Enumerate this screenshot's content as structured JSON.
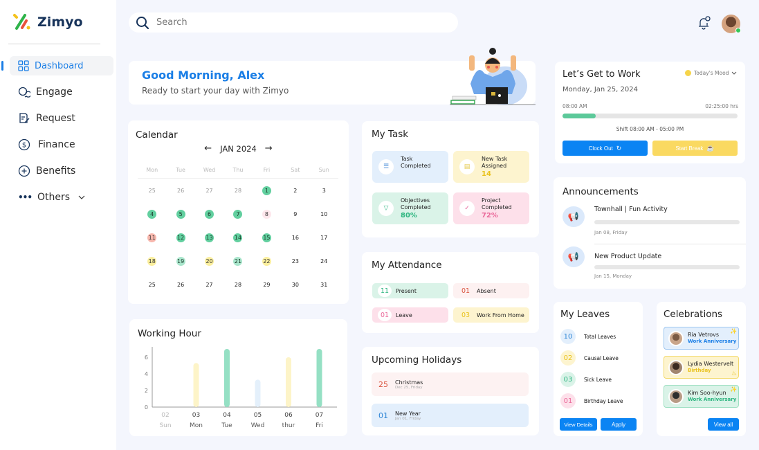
{
  "app": {
    "name": "Zimyo"
  },
  "sidebar": {
    "items": [
      {
        "label": "Dashboard",
        "icon": "grid-icon",
        "active": true
      },
      {
        "label": "Engage",
        "icon": "chat-icon"
      },
      {
        "label": "Request",
        "icon": "form-icon"
      },
      {
        "label": "Finance",
        "icon": "dollar-icon"
      },
      {
        "label": "Benefits",
        "icon": "plus-circle-icon"
      },
      {
        "label": "Others",
        "icon": "more-icon"
      }
    ]
  },
  "search": {
    "placeholder": "Search"
  },
  "greeting": {
    "title": "Good Morning, Alex",
    "subtitle": "Ready to start your day with Zimyo"
  },
  "work": {
    "title": "Let’s Get to Work",
    "mood": "Today's Mood",
    "date": "Monday, Jan 25, 2024",
    "start": "08:00 AM",
    "elapsed": "02:25:00 hrs",
    "progress_pct": 18,
    "shift": "Shift  08:00 AM - 05:00 PM",
    "clock_out": "Clock Out",
    "start_break": "Start Break"
  },
  "calendar": {
    "title": "Calendar",
    "month": "JAN 2024",
    "weekdays": [
      "Mon",
      "Tue",
      "Wed",
      "Thu",
      "Fri",
      "Sat",
      "Sun"
    ],
    "days": [
      {
        "d": "25",
        "s": "muted"
      },
      {
        "d": "26",
        "s": "muted"
      },
      {
        "d": "27",
        "s": "muted"
      },
      {
        "d": "28",
        "s": "muted"
      },
      {
        "d": "1",
        "s": "present"
      },
      {
        "d": "2"
      },
      {
        "d": "3"
      },
      {
        "d": "4",
        "s": "present"
      },
      {
        "d": "5",
        "s": "present"
      },
      {
        "d": "6",
        "s": "present"
      },
      {
        "d": "7",
        "s": "present"
      },
      {
        "d": "8",
        "s": "leave"
      },
      {
        "d": "9"
      },
      {
        "d": "10"
      },
      {
        "d": "11",
        "s": "absent"
      },
      {
        "d": "12",
        "s": "present"
      },
      {
        "d": "13",
        "s": "present"
      },
      {
        "d": "14",
        "s": "present"
      },
      {
        "d": "15",
        "s": "present"
      },
      {
        "d": "16"
      },
      {
        "d": "17"
      },
      {
        "d": "18",
        "s": "wfh"
      },
      {
        "d": "19",
        "s": "light"
      },
      {
        "d": "20",
        "s": "wfh"
      },
      {
        "d": "21",
        "s": "light"
      },
      {
        "d": "22",
        "s": "wfh"
      },
      {
        "d": "23"
      },
      {
        "d": "24"
      },
      {
        "d": "25"
      },
      {
        "d": "26"
      },
      {
        "d": "27"
      },
      {
        "d": "28"
      },
      {
        "d": "29"
      },
      {
        "d": "30"
      },
      {
        "d": "31"
      }
    ]
  },
  "tasks": {
    "title": "My Task",
    "items": [
      {
        "l1": "Task",
        "l2": "Completed",
        "value": ""
      },
      {
        "l1": "New Task",
        "l2": "Assigned",
        "value": "14"
      },
      {
        "l1": "Objectives",
        "l2": "Completed",
        "value": "80%"
      },
      {
        "l1": "Project",
        "l2": "Completed",
        "value": "72%"
      }
    ]
  },
  "attendance": {
    "title": "My Attendance",
    "items": [
      {
        "n": "11",
        "label": "Present"
      },
      {
        "n": "01",
        "label": "Absent"
      },
      {
        "n": "01",
        "label": "Leave"
      },
      {
        "n": "03",
        "label": "Work From Home"
      }
    ]
  },
  "holidays": {
    "title": "Upcoming Holidays",
    "items": [
      {
        "n": "25",
        "name": "Christmas",
        "date": "Dec 25, Friday"
      },
      {
        "n": "01",
        "name": "New Year",
        "date": "Jan 01, Friday"
      }
    ]
  },
  "announcements": {
    "title": "Announcements",
    "items": [
      {
        "title": "Townhall | Fun Activity",
        "date": "Jan 08, Friday"
      },
      {
        "title": "New Product Update",
        "date": "Jan 15, Monday"
      }
    ]
  },
  "leaves": {
    "title": "My Leaves",
    "items": [
      {
        "n": "10",
        "label": "Total Leaves"
      },
      {
        "n": "02",
        "label": "Causal Leave"
      },
      {
        "n": "03",
        "label": "Sick Leave"
      },
      {
        "n": "01",
        "label": "Birthday Leave"
      }
    ],
    "view_details": "View Details",
    "apply": "Apply"
  },
  "celebrations": {
    "title": "Celebrations",
    "items": [
      {
        "name": "Ria Vetrovs",
        "event": "Work Anniversary"
      },
      {
        "name": "Lydia Westervelt",
        "event": "Birthday"
      },
      {
        "name": "Kim Soo-hyun",
        "event": "Work Anniversary"
      }
    ],
    "view_all": "View all"
  },
  "chart_data": {
    "type": "bar",
    "title": "Working Hour",
    "categories": [
      "02 Sun",
      "03 Mon",
      "04 Tue",
      "05 Wed",
      "06 thur",
      "07 Fri"
    ],
    "dates": [
      "02",
      "03",
      "04",
      "05",
      "06",
      "07"
    ],
    "days": [
      "Sun",
      "Mon",
      "Tue",
      "Wed",
      "thur",
      "Fri"
    ],
    "values": [
      0,
      5.3,
      7,
      3.3,
      6,
      7
    ],
    "colors": [
      "#cccccc",
      "#fdf4c8",
      "#95e0c4",
      "#e4f0fb",
      "#fdf4c8",
      "#95e0c4"
    ],
    "yticks": [
      0,
      2,
      4,
      6
    ],
    "ylim": [
      0,
      7
    ],
    "xlabel": "",
    "ylabel": "",
    "grid": false
  }
}
